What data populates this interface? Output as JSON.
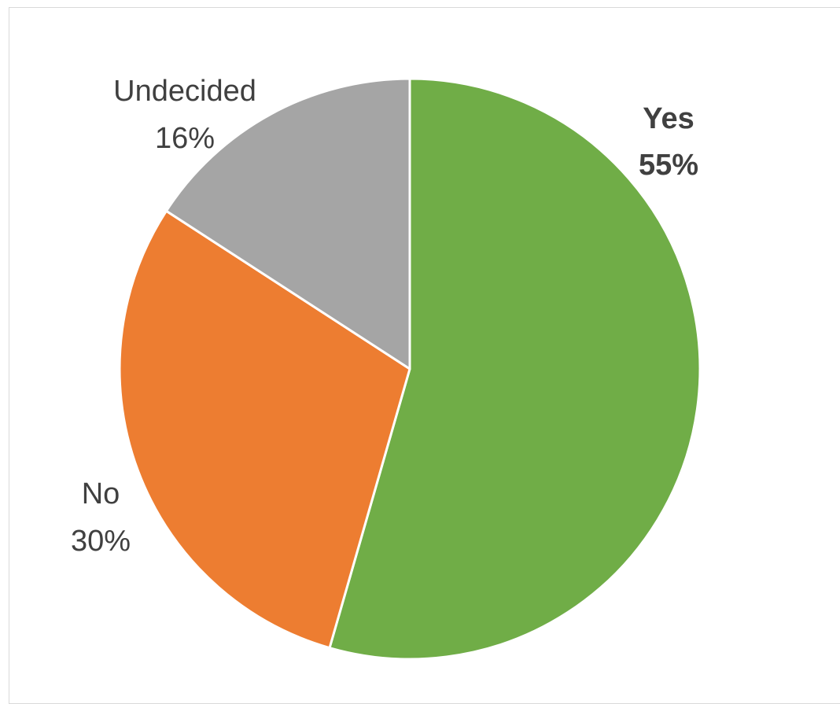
{
  "chart_data": {
    "type": "pie",
    "title": "",
    "slices": [
      {
        "label": "Yes",
        "percent_text": "55%",
        "value": 55,
        "color": "#70ad47",
        "label_bold": true
      },
      {
        "label": "No",
        "percent_text": "30%",
        "value": 30,
        "color": "#ed7d31",
        "label_bold": false
      },
      {
        "label": "Undecided",
        "percent_text": "16%",
        "value": 16,
        "color": "#a5a5a5",
        "label_bold": false
      }
    ],
    "start_angle_deg": 0,
    "direction": "clockwise",
    "legend": "none"
  }
}
